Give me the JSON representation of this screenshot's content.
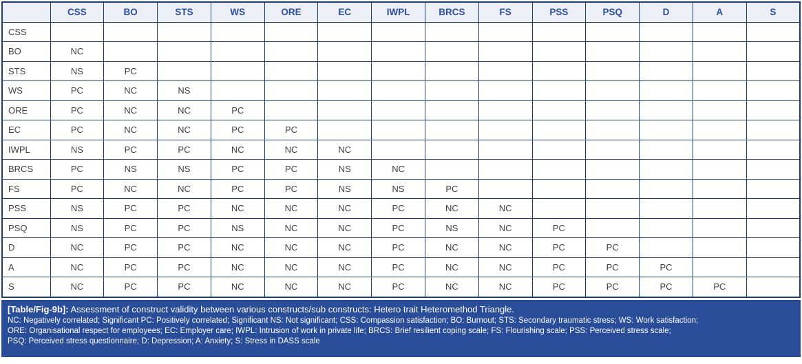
{
  "colors": {
    "border": "#1d3c70",
    "header_bg": "#edeff6",
    "header_text": "#2b4da1",
    "cell_text": "#3f3f3f",
    "caption_bg": "#2a4d9a",
    "caption_text": "#ffffff"
  },
  "table": {
    "column_headers": [
      "",
      "CSS",
      "BO",
      "STS",
      "WS",
      "ORE",
      "EC",
      "IWPL",
      "BRCS",
      "FS",
      "PSS",
      "PSQ",
      "D",
      "A",
      "S"
    ],
    "rows": [
      {
        "label": "CSS",
        "values": [
          "",
          "",
          "",
          "",
          "",
          "",
          "",
          "",
          "",
          "",
          "",
          "",
          "",
          ""
        ]
      },
      {
        "label": "BO",
        "values": [
          "NC",
          "",
          "",
          "",
          "",
          "",
          "",
          "",
          "",
          "",
          "",
          "",
          "",
          ""
        ]
      },
      {
        "label": "STS",
        "values": [
          "NS",
          "PC",
          "",
          "",
          "",
          "",
          "",
          "",
          "",
          "",
          "",
          "",
          "",
          ""
        ]
      },
      {
        "label": "WS",
        "values": [
          "PC",
          "NC",
          "NS",
          "",
          "",
          "",
          "",
          "",
          "",
          "",
          "",
          "",
          "",
          ""
        ]
      },
      {
        "label": "ORE",
        "values": [
          "PC",
          "NC",
          "NC",
          "PC",
          "",
          "",
          "",
          "",
          "",
          "",
          "",
          "",
          "",
          ""
        ]
      },
      {
        "label": "EC",
        "values": [
          "PC",
          "NC",
          "NC",
          "PC",
          "PC",
          "",
          "",
          "",
          "",
          "",
          "",
          "",
          "",
          ""
        ]
      },
      {
        "label": "IWPL",
        "values": [
          "NS",
          "PC",
          "PC",
          "NC",
          "NC",
          "NC",
          "",
          "",
          "",
          "",
          "",
          "",
          "",
          ""
        ]
      },
      {
        "label": "BRCS",
        "values": [
          "PC",
          "NS",
          "NS",
          "PC",
          "PC",
          "NS",
          "NC",
          "",
          "",
          "",
          "",
          "",
          "",
          ""
        ]
      },
      {
        "label": "FS",
        "values": [
          "PC",
          "NC",
          "NC",
          "PC",
          "PC",
          "NS",
          "NS",
          "PC",
          "",
          "",
          "",
          "",
          "",
          ""
        ]
      },
      {
        "label": "PSS",
        "values": [
          "NS",
          "PC",
          "PC",
          "NC",
          "NC",
          "NC",
          "PC",
          "NC",
          "NC",
          "",
          "",
          "",
          "",
          ""
        ]
      },
      {
        "label": "PSQ",
        "values": [
          "NS",
          "PC",
          "PC",
          "NS",
          "NC",
          "NC",
          "PC",
          "NS",
          "NC",
          "PC",
          "",
          "",
          "",
          ""
        ]
      },
      {
        "label": "D",
        "values": [
          "NC",
          "PC",
          "PC",
          "NC",
          "NC",
          "NC",
          "PC",
          "NC",
          "NC",
          "PC",
          "PC",
          "",
          "",
          ""
        ]
      },
      {
        "label": "A",
        "values": [
          "NC",
          "PC",
          "PC",
          "NC",
          "NC",
          "NC",
          "PC",
          "NC",
          "NC",
          "PC",
          "PC",
          "PC",
          "",
          ""
        ]
      },
      {
        "label": "S",
        "values": [
          "NC",
          "PC",
          "PC",
          "NC",
          "NC",
          "NC",
          "PC",
          "NC",
          "NC",
          "PC",
          "PC",
          "PC",
          "PC",
          ""
        ]
      }
    ]
  },
  "caption": {
    "tag": "[Table/Fig-9b]:",
    "title": "Assessment of construct validity between various constructs/sub constructs: Hetero trait Heteromethod Triangle.",
    "lines": [
      "NC: Negatively correlated; Significant PC: Positively correlated; Significant NS: Not significant; CSS: Compassion satisfaction; BO: Burnout; STS: Secondary traumatic stress; WS: Work satisfaction;",
      "ORE: Organisational respect for employees; EC: Employer care; IWPL: Intrusion of work in private life; BRCS: Brief resilient coping scale; FS: Flourishing scale; PSS: Perceived stress scale;",
      "PSQ: Perceived stress questionnaire; D: Depression; A: Anxiety; S: Stress in DASS scale"
    ]
  }
}
